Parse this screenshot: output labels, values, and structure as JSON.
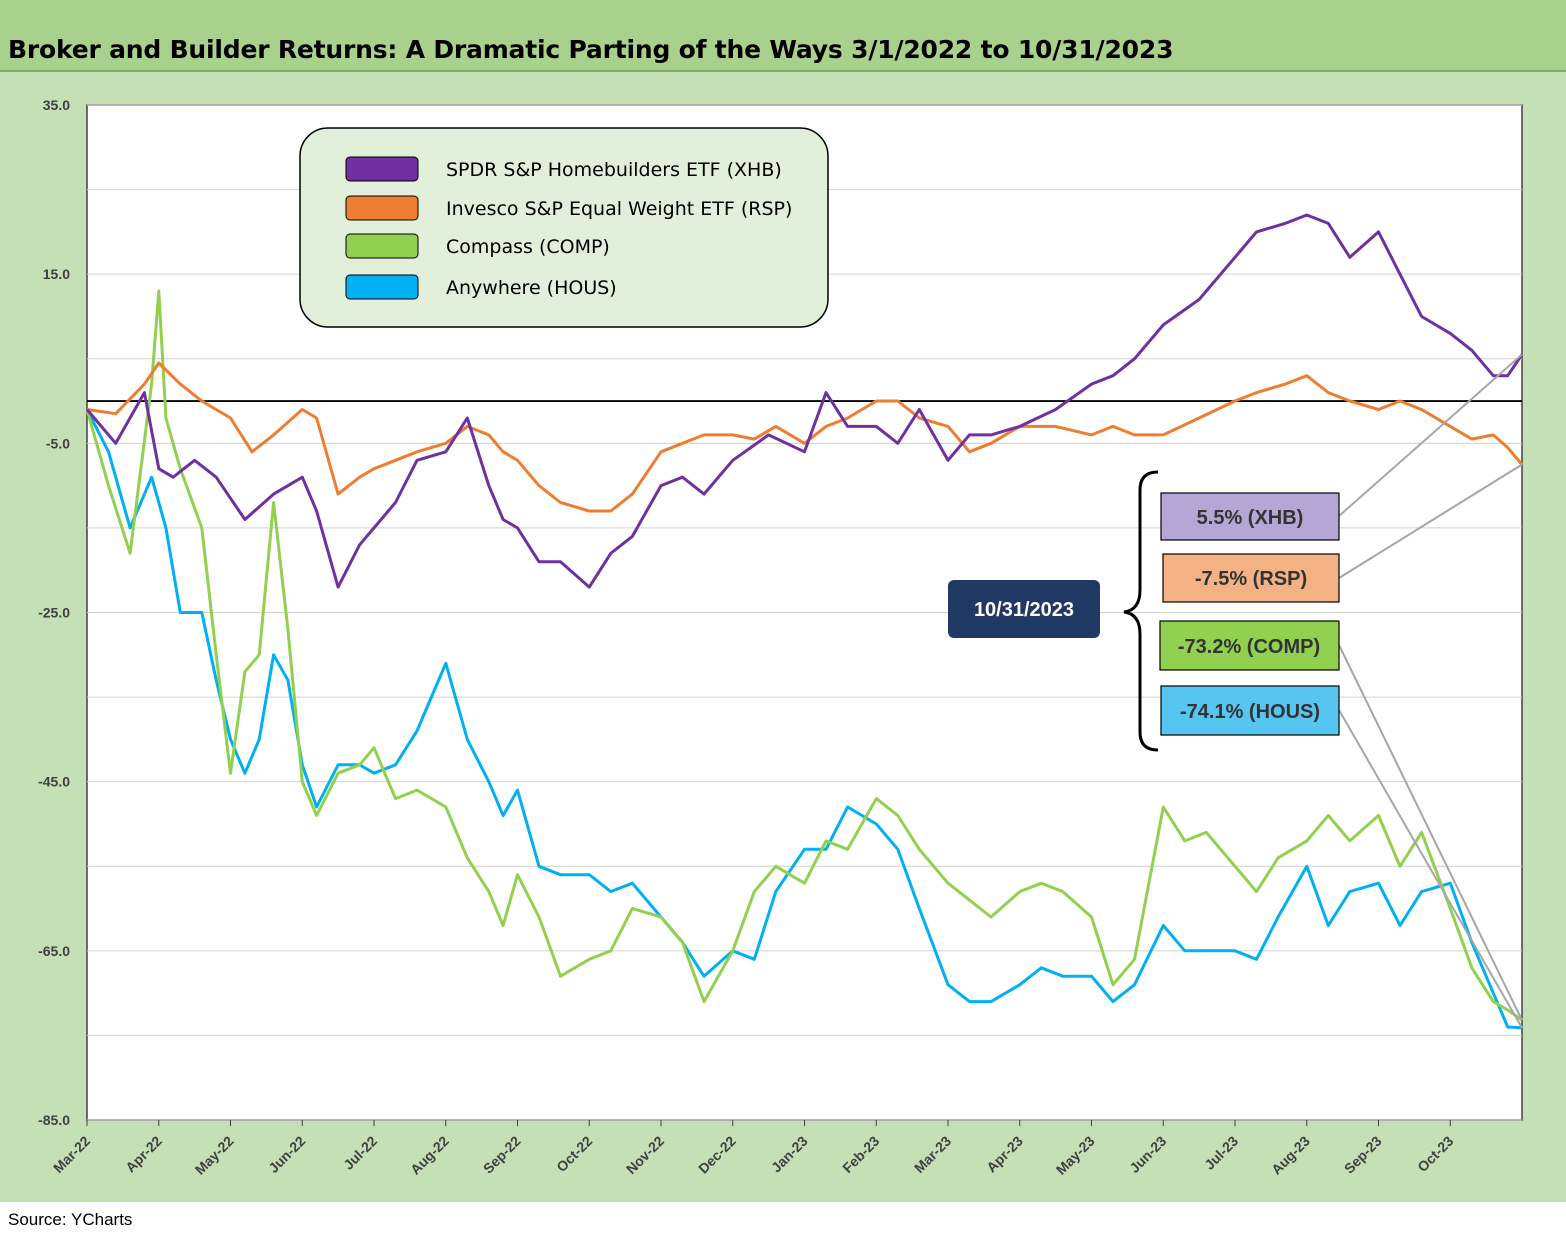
{
  "title": "Broker and Builder Returns: A Dramatic Parting of the Ways  3/1/2022 to 10/31/2023",
  "source": "Source:  YCharts",
  "chart_data": {
    "type": "line",
    "ylim": [
      -85,
      35
    ],
    "yticks": [
      "35.0",
      "15.0",
      "-5.0",
      "-25.0",
      "-45.0",
      "-65.0",
      "-85.0"
    ],
    "ytick_values": [
      35,
      15,
      -5,
      -25,
      -45,
      -65,
      -85
    ],
    "xticks": [
      "Mar-22",
      "Apr-22",
      "May-22",
      "Jun-22",
      "Jul-22",
      "Aug-22",
      "Sep-22",
      "Oct-22",
      "Nov-22",
      "Dec-22",
      "Jan-23",
      "Feb-23",
      "Mar-23",
      "Apr-23",
      "May-23",
      "Jun-23",
      "Jul-23",
      "Aug-23",
      "Sep-23",
      "Oct-23"
    ],
    "x_month_index_range": [
      0,
      20
    ],
    "zero_line": true,
    "grid": true,
    "legend_position": "top-left",
    "series": [
      {
        "name": "SPDR S&P Homebuilders ETF (XHB)",
        "color": "#7030a0",
        "x": [
          0,
          0.4,
          0.8,
          1.0,
          1.2,
          1.5,
          1.8,
          2.2,
          2.6,
          3.0,
          3.2,
          3.5,
          3.8,
          4.0,
          4.3,
          4.6,
          5.0,
          5.3,
          5.6,
          5.8,
          6.0,
          6.3,
          6.6,
          7.0,
          7.3,
          7.6,
          8.0,
          8.3,
          8.6,
          9.0,
          9.5,
          10.0,
          10.3,
          10.6,
          11.0,
          11.3,
          11.6,
          12.0,
          12.3,
          12.6,
          13.0,
          13.5,
          14.0,
          14.3,
          14.6,
          15.0,
          15.5,
          16.0,
          16.3,
          16.7,
          17.0,
          17.3,
          17.6,
          18.0,
          18.3,
          18.6,
          19.0,
          19.3,
          19.6,
          19.8,
          20.0
        ],
        "y": [
          -1,
          -5,
          1,
          -8,
          -9,
          -7,
          -9,
          -14,
          -11,
          -9,
          -13,
          -22,
          -17,
          -15,
          -12,
          -7,
          -6,
          -2,
          -10,
          -14,
          -15,
          -19,
          -19,
          -22,
          -18,
          -16,
          -10,
          -9,
          -11,
          -7,
          -4,
          -6,
          1,
          -3,
          -3,
          -5,
          -1,
          -7,
          -4,
          -4,
          -3,
          -1,
          2,
          3,
          5,
          9,
          12,
          17,
          20,
          21,
          22,
          21,
          17,
          20,
          15,
          10,
          8,
          6,
          3,
          3,
          5.5
        ]
      },
      {
        "name": "Invesco S&P Equal Weight ETF (RSP)",
        "color": "#ed7d31",
        "x": [
          0,
          0.4,
          0.8,
          1.0,
          1.3,
          1.6,
          2.0,
          2.3,
          2.6,
          3.0,
          3.2,
          3.5,
          3.8,
          4.0,
          4.3,
          4.6,
          5.0,
          5.3,
          5.6,
          5.8,
          6.0,
          6.3,
          6.6,
          7.0,
          7.3,
          7.6,
          8.0,
          8.3,
          8.6,
          9.0,
          9.3,
          9.6,
          10.0,
          10.3,
          10.6,
          11.0,
          11.3,
          11.6,
          12.0,
          12.3,
          12.6,
          13.0,
          13.5,
          14.0,
          14.3,
          14.6,
          15.0,
          15.5,
          16.0,
          16.3,
          16.7,
          17.0,
          17.3,
          17.6,
          18.0,
          18.3,
          18.6,
          19.0,
          19.3,
          19.6,
          19.8,
          20.0
        ],
        "y": [
          -1,
          -1.5,
          2,
          4.5,
          2,
          0,
          -2,
          -6,
          -4,
          -1,
          -2,
          -11,
          -9,
          -8,
          -7,
          -6,
          -5,
          -3,
          -4,
          -6,
          -7,
          -10,
          -12,
          -13,
          -13,
          -11,
          -6,
          -5,
          -4,
          -4,
          -4.5,
          -3,
          -5,
          -3,
          -2,
          0,
          0,
          -2,
          -3,
          -6,
          -5,
          -3,
          -3,
          -4,
          -3,
          -4,
          -4,
          -2,
          0,
          1,
          2,
          3,
          1,
          0,
          -1,
          0,
          -1,
          -3,
          -4.5,
          -4,
          -5.5,
          -7.5
        ]
      },
      {
        "name": "Compass (COMP)",
        "color": "#92d050",
        "x": [
          0,
          0.3,
          0.6,
          0.9,
          1.0,
          1.1,
          1.3,
          1.6,
          1.8,
          2.0,
          2.2,
          2.4,
          2.6,
          2.8,
          3.0,
          3.2,
          3.5,
          3.8,
          4.0,
          4.3,
          4.6,
          5.0,
          5.3,
          5.6,
          5.8,
          6.0,
          6.3,
          6.6,
          7.0,
          7.3,
          7.6,
          8.0,
          8.3,
          8.6,
          9.0,
          9.3,
          9.6,
          10.0,
          10.3,
          10.6,
          11.0,
          11.3,
          11.6,
          12.0,
          12.3,
          12.6,
          13.0,
          13.3,
          13.6,
          14.0,
          14.3,
          14.6,
          15.0,
          15.3,
          15.6,
          16.0,
          16.3,
          16.6,
          17.0,
          17.3,
          17.6,
          18.0,
          18.3,
          18.6,
          19.0,
          19.3,
          19.6,
          19.8,
          20.0
        ],
        "y": [
          -1,
          -10,
          -18,
          2,
          13,
          -2,
          -8,
          -15,
          -30,
          -44,
          -32,
          -30,
          -12,
          -27,
          -45,
          -49,
          -44,
          -43,
          -41,
          -47,
          -46,
          -48,
          -54,
          -58,
          -62,
          -56,
          -61,
          -68,
          -66,
          -65,
          -60,
          -61,
          -64,
          -71,
          -65,
          -58,
          -55,
          -57,
          -52,
          -53,
          -47,
          -49,
          -53,
          -57,
          -59,
          -61,
          -58,
          -57,
          -58,
          -61,
          -69,
          -66,
          -48,
          -52,
          -51,
          -55,
          -58,
          -54,
          -52,
          -49,
          -52,
          -49,
          -55,
          -51,
          -60,
          -67,
          -71,
          -72,
          -73.2
        ]
      },
      {
        "name": "Anywhere (HOUS)",
        "color": "#00b0f0",
        "x": [
          0,
          0.3,
          0.6,
          0.9,
          1.0,
          1.1,
          1.3,
          1.6,
          1.8,
          2.0,
          2.2,
          2.4,
          2.6,
          2.8,
          3.0,
          3.2,
          3.5,
          3.8,
          4.0,
          4.3,
          4.6,
          5.0,
          5.3,
          5.6,
          5.8,
          6.0,
          6.3,
          6.6,
          7.0,
          7.3,
          7.6,
          8.0,
          8.3,
          8.6,
          9.0,
          9.3,
          9.6,
          10.0,
          10.3,
          10.6,
          11.0,
          11.3,
          11.6,
          12.0,
          12.3,
          12.6,
          13.0,
          13.3,
          13.6,
          14.0,
          14.3,
          14.6,
          15.0,
          15.3,
          15.6,
          16.0,
          16.3,
          16.6,
          17.0,
          17.3,
          17.6,
          18.0,
          18.3,
          18.6,
          19.0,
          19.3,
          19.6,
          19.8,
          20.0
        ],
        "y": [
          -1,
          -6,
          -15,
          -9,
          -12,
          -15,
          -25,
          -25,
          -33,
          -40,
          -44,
          -40,
          -30,
          -33,
          -43,
          -48,
          -43,
          -43,
          -44,
          -43,
          -39,
          -31,
          -40,
          -45,
          -49,
          -46,
          -55,
          -56,
          -56,
          -58,
          -57,
          -61,
          -64,
          -68,
          -65,
          -66,
          -58,
          -53,
          -53,
          -48,
          -50,
          -53,
          -60,
          -69,
          -71,
          -71,
          -69,
          -67,
          -68,
          -68,
          -71,
          -69,
          -62,
          -65,
          -65,
          -65,
          -66,
          -61,
          -55,
          -62,
          -58,
          -57,
          -62,
          -58,
          -57,
          -64,
          -70,
          -74,
          -74.1
        ]
      }
    ]
  },
  "legend": {
    "items": [
      {
        "label": "SPDR S&P Homebuilders ETF (XHB)",
        "color": "#7030a0"
      },
      {
        "label": "Invesco S&P Equal Weight ETF (RSP)",
        "color": "#ed7d31"
      },
      {
        "label": "Compass (COMP)",
        "color": "#92d050"
      },
      {
        "label": "Anywhere (HOUS)",
        "color": "#00b0f0"
      }
    ]
  },
  "annotations": {
    "date_label": "10/31/2023",
    "date_color": "#1f3864",
    "end_values": [
      {
        "label": "5.5% (XHB)",
        "color": "#b4a7d6",
        "value": 5.5
      },
      {
        "label": "-7.5% (RSP)",
        "color": "#f4b183",
        "value": -7.5
      },
      {
        "label": "-73.2% (COMP)",
        "color": "#92d050",
        "value": -73.2
      },
      {
        "label": "-74.1% (HOUS)",
        "color": "#56c5f0",
        "value": -74.1
      }
    ]
  }
}
